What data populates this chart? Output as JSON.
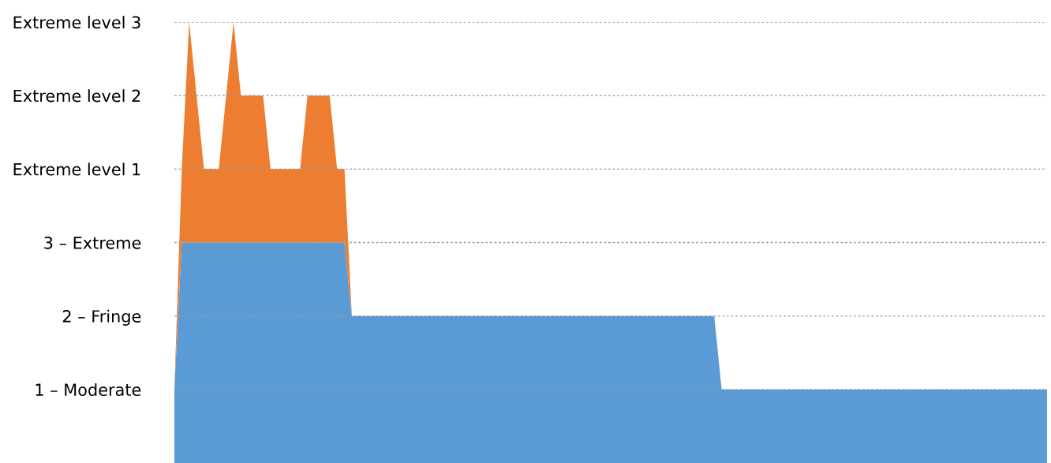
{
  "chart_data": {
    "type": "area",
    "stacked": true,
    "categories": [
      null,
      null,
      null,
      null,
      null,
      null,
      null,
      null,
      null,
      null,
      null,
      null,
      null,
      null,
      null,
      null,
      null,
      null,
      null,
      null,
      null,
      null,
      null,
      null,
      null,
      null,
      null,
      null,
      null,
      null,
      null,
      null,
      null,
      null,
      null,
      null,
      null,
      null,
      null,
      null,
      null,
      null,
      null,
      null,
      null,
      null,
      null,
      null,
      null,
      null,
      null,
      null,
      null,
      null,
      null,
      null,
      null,
      null,
      null,
      null,
      null,
      null,
      null,
      null,
      null,
      null,
      null,
      null,
      null,
      null,
      null,
      null,
      null,
      null,
      null,
      null,
      null,
      null,
      null,
      null,
      null,
      null,
      null,
      null,
      null,
      null,
      null,
      null,
      null,
      null,
      null,
      null,
      null,
      null,
      null,
      null,
      null,
      null,
      null,
      null,
      null,
      null,
      null,
      null,
      null,
      null,
      null,
      null,
      null,
      null,
      null,
      null,
      null,
      null,
      null,
      null,
      null,
      null,
      null
    ],
    "series": [
      {
        "color": "#5b9bd5",
        "values": [
          1,
          3,
          3,
          3,
          3,
          3,
          3,
          3,
          3,
          3,
          3,
          3,
          3,
          3,
          3,
          3,
          3,
          3,
          3,
          3,
          3,
          3,
          3,
          3,
          2,
          2,
          2,
          2,
          2,
          2,
          2,
          2,
          2,
          2,
          2,
          2,
          2,
          2,
          2,
          2,
          2,
          2,
          2,
          2,
          2,
          2,
          2,
          2,
          2,
          2,
          2,
          2,
          2,
          2,
          2,
          2,
          2,
          2,
          2,
          2,
          2,
          2,
          2,
          2,
          2,
          2,
          2,
          2,
          2,
          2,
          2,
          2,
          2,
          2,
          1,
          1,
          1,
          1,
          1,
          1,
          1,
          1,
          1,
          1,
          1,
          1,
          1,
          1,
          1,
          1,
          1,
          1,
          1,
          1,
          1,
          1,
          1,
          1,
          1,
          1,
          1,
          1,
          1,
          1,
          1,
          1,
          1,
          1,
          1,
          1,
          1,
          1,
          1,
          1,
          1,
          1,
          1,
          1,
          1
        ]
      },
      {
        "color": "#ed7d31",
        "values": [
          0,
          1,
          3,
          2,
          1,
          1,
          1,
          2,
          3,
          2,
          2,
          2,
          2,
          1,
          1,
          1,
          1,
          1,
          2,
          2,
          2,
          2,
          1,
          1,
          0,
          0,
          0,
          0,
          0,
          0,
          0,
          0,
          0,
          0,
          0,
          0,
          0,
          0,
          0,
          0,
          0,
          0,
          0,
          0,
          0,
          0,
          0,
          0,
          0,
          0,
          0,
          0,
          0,
          0,
          0,
          0,
          0,
          0,
          0,
          0,
          0,
          0,
          0,
          0,
          0,
          0,
          0,
          0,
          0,
          0,
          0,
          0,
          0,
          0,
          0,
          0,
          0,
          0,
          0,
          0,
          0,
          0,
          0,
          0,
          0,
          0,
          0,
          0,
          0,
          0,
          0,
          0,
          0,
          0,
          0,
          0,
          0,
          0,
          0,
          0,
          0,
          0,
          0,
          0,
          0,
          0,
          0,
          0,
          0,
          0,
          0,
          0,
          0,
          0,
          0,
          0,
          0,
          0,
          0
        ]
      }
    ],
    "ylim": [
      0,
      6
    ],
    "yticks": [
      {
        "value": 1,
        "label": "1 – Moderate"
      },
      {
        "value": 2,
        "label": "2 – Fringe"
      },
      {
        "value": 3,
        "label": "3 – Extreme"
      },
      {
        "value": 4,
        "label": "Extreme level 1"
      },
      {
        "value": 5,
        "label": "Extreme level 2"
      },
      {
        "value": 6,
        "label": "Extreme level 3"
      }
    ],
    "grid": "y",
    "tick_labels": "y"
  }
}
